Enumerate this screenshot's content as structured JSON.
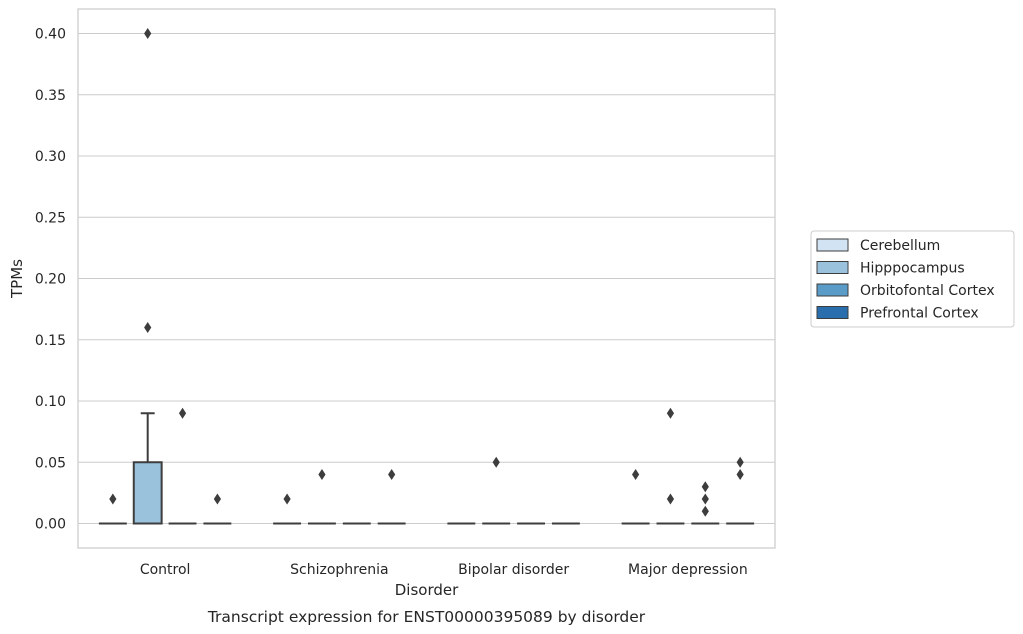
{
  "chart_data": {
    "type": "box",
    "title": "",
    "caption": "Transcript expression for ENST00000395089 by disorder",
    "xlabel": "Disorder",
    "ylabel": "TPMs",
    "categories": [
      "Control",
      "Schizophrenia",
      "Bipolar disorder",
      "Major depression"
    ],
    "ylim": [
      -0.02,
      0.42
    ],
    "yticks": [
      "0.00",
      "0.05",
      "0.10",
      "0.15",
      "0.20",
      "0.25",
      "0.30",
      "0.35",
      "0.40"
    ],
    "grid": true,
    "legend_position": "right",
    "series": [
      {
        "name": "Cerebellum",
        "color": "#d2e3f3",
        "boxes": [
          {
            "q1": 0,
            "median": 0,
            "q3": 0,
            "whisker_low": 0,
            "whisker_high": 0,
            "outliers": [
              0.02
            ]
          },
          {
            "q1": 0,
            "median": 0,
            "q3": 0,
            "whisker_low": 0,
            "whisker_high": 0,
            "outliers": [
              0.02
            ]
          },
          {
            "q1": 0,
            "median": 0,
            "q3": 0,
            "whisker_low": 0,
            "whisker_high": 0,
            "outliers": []
          },
          {
            "q1": 0,
            "median": 0,
            "q3": 0,
            "whisker_low": 0,
            "whisker_high": 0,
            "outliers": [
              0.04
            ]
          }
        ]
      },
      {
        "name": "Hipppocampus",
        "color": "#9ac2dd",
        "boxes": [
          {
            "q1": 0,
            "median": 0,
            "q3": 0.05,
            "whisker_low": 0,
            "whisker_high": 0.09,
            "outliers": [
              0.16,
              0.4
            ]
          },
          {
            "q1": 0,
            "median": 0,
            "q3": 0,
            "whisker_low": 0,
            "whisker_high": 0,
            "outliers": [
              0.04
            ]
          },
          {
            "q1": 0,
            "median": 0,
            "q3": 0,
            "whisker_low": 0,
            "whisker_high": 0,
            "outliers": [
              0.05
            ]
          },
          {
            "q1": 0,
            "median": 0,
            "q3": 0,
            "whisker_low": 0,
            "whisker_high": 0,
            "outliers": [
              0.02,
              0.09
            ]
          }
        ]
      },
      {
        "name": "Orbitofontal Cortex",
        "color": "#5a9bc8",
        "boxes": [
          {
            "q1": 0,
            "median": 0,
            "q3": 0,
            "whisker_low": 0,
            "whisker_high": 0,
            "outliers": [
              0.09
            ]
          },
          {
            "q1": 0,
            "median": 0,
            "q3": 0,
            "whisker_low": 0,
            "whisker_high": 0,
            "outliers": []
          },
          {
            "q1": 0,
            "median": 0,
            "q3": 0,
            "whisker_low": 0,
            "whisker_high": 0,
            "outliers": []
          },
          {
            "q1": 0,
            "median": 0,
            "q3": 0,
            "whisker_low": 0,
            "whisker_high": 0,
            "outliers": [
              0.01,
              0.02,
              0.03
            ]
          }
        ]
      },
      {
        "name": "Prefrontal Cortex",
        "color": "#2b6ead",
        "boxes": [
          {
            "q1": 0,
            "median": 0,
            "q3": 0,
            "whisker_low": 0,
            "whisker_high": 0,
            "outliers": [
              0.02
            ]
          },
          {
            "q1": 0,
            "median": 0,
            "q3": 0,
            "whisker_low": 0,
            "whisker_high": 0,
            "outliers": [
              0.04
            ]
          },
          {
            "q1": 0,
            "median": 0,
            "q3": 0,
            "whisker_low": 0,
            "whisker_high": 0,
            "outliers": []
          },
          {
            "q1": 0,
            "median": 0,
            "q3": 0,
            "whisker_low": 0,
            "whisker_high": 0,
            "outliers": [
              0.04,
              0.05
            ]
          }
        ]
      }
    ]
  }
}
